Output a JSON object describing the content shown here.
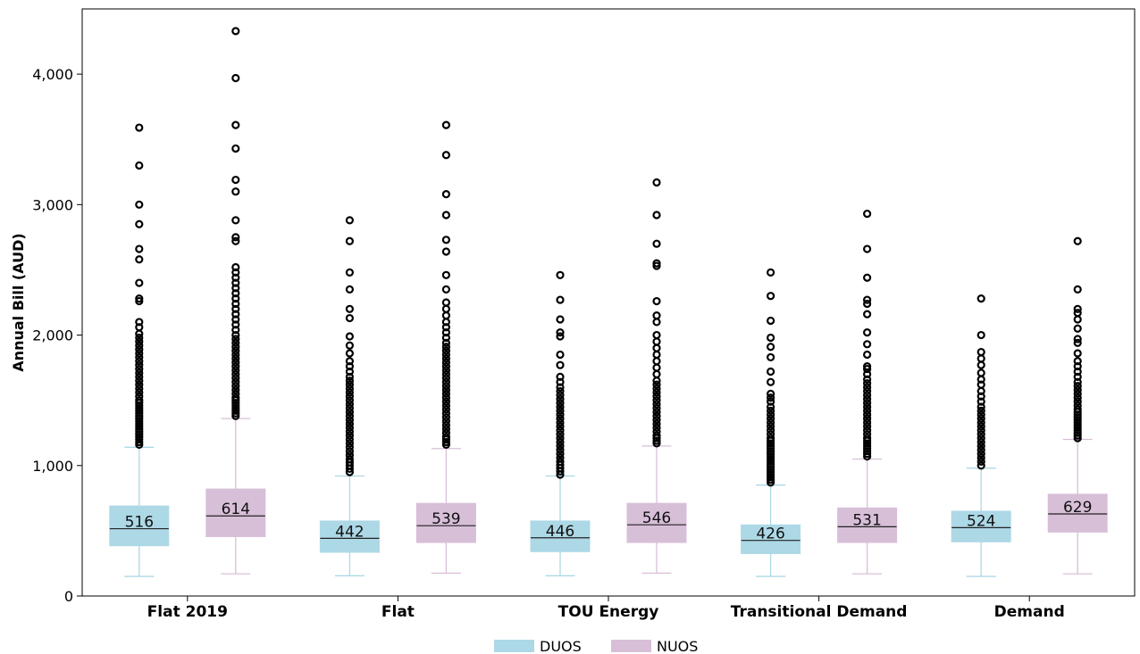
{
  "chart_data": {
    "type": "box",
    "ylabel": "Annual Bill (AUD)",
    "xlabel": "",
    "ylim": [
      0,
      4500
    ],
    "yticks": [
      0,
      1000,
      2000,
      3000,
      4000
    ],
    "ytick_labels": [
      "0",
      "1,000",
      "2,000",
      "3,000",
      "4,000"
    ],
    "grid": false,
    "legend_position": "bottom-center",
    "categories": [
      "Flat 2019",
      "Flat",
      "TOU Energy",
      "Transitional Demand",
      "Demand"
    ],
    "series": [
      {
        "name": "DUOS",
        "color": "#add8e6",
        "boxes": [
          {
            "q1": 385,
            "median": 516,
            "q3": 690,
            "whisker_low": 150,
            "whisker_high": 1140,
            "outliers": [
              1160,
              1180,
              1200,
              1220,
              1240,
              1260,
              1280,
              1300,
              1320,
              1340,
              1360,
              1380,
              1400,
              1420,
              1440,
              1460,
              1480,
              1500,
              1530,
              1560,
              1590,
              1620,
              1650,
              1680,
              1710,
              1740,
              1770,
              1800,
              1830,
              1860,
              1890,
              1920,
              1950,
              1980,
              2010,
              2060,
              2100,
              2260,
              2280,
              2400,
              2580,
              2660,
              2850,
              3000,
              3300,
              3590
            ]
          },
          {
            "q1": 335,
            "median": 442,
            "q3": 575,
            "whisker_low": 155,
            "whisker_high": 920,
            "outliers": [
              950,
              975,
              1000,
              1025,
              1050,
              1080,
              1110,
              1140,
              1170,
              1200,
              1230,
              1260,
              1290,
              1320,
              1350,
              1380,
              1410,
              1440,
              1470,
              1500,
              1530,
              1560,
              1590,
              1620,
              1650,
              1680,
              1720,
              1760,
              1800,
              1860,
              1920,
              1990,
              2130,
              2200,
              2350,
              2480,
              2720,
              2880
            ]
          },
          {
            "q1": 340,
            "median": 446,
            "q3": 575,
            "whisker_low": 155,
            "whisker_high": 920,
            "outliers": [
              930,
              955,
              980,
              1005,
              1030,
              1060,
              1090,
              1120,
              1150,
              1180,
              1210,
              1240,
              1270,
              1300,
              1330,
              1360,
              1390,
              1420,
              1450,
              1480,
              1510,
              1540,
              1570,
              1600,
              1640,
              1680,
              1770,
              1850,
              1990,
              2020,
              2120,
              2270,
              2460
            ]
          },
          {
            "q1": 325,
            "median": 426,
            "q3": 545,
            "whisker_low": 150,
            "whisker_high": 850,
            "outliers": [
              870,
              890,
              910,
              930,
              950,
              970,
              990,
              1010,
              1030,
              1050,
              1070,
              1090,
              1110,
              1130,
              1150,
              1170,
              1190,
              1210,
              1240,
              1270,
              1300,
              1330,
              1360,
              1390,
              1420,
              1450,
              1490,
              1520,
              1550,
              1640,
              1720,
              1830,
              1910,
              1980,
              2110,
              2300,
              2480
            ]
          },
          {
            "q1": 415,
            "median": 524,
            "q3": 650,
            "whisker_low": 150,
            "whisker_high": 980,
            "outliers": [
              1000,
              1030,
              1060,
              1090,
              1120,
              1150,
              1180,
              1210,
              1240,
              1270,
              1300,
              1330,
              1360,
              1390,
              1420,
              1450,
              1490,
              1530,
              1570,
              1620,
              1660,
              1710,
              1770,
              1820,
              1870,
              2000,
              2280
            ]
          }
        ]
      },
      {
        "name": "NUOS",
        "color": "#d8bfd8",
        "boxes": [
          {
            "q1": 455,
            "median": 614,
            "q3": 820,
            "whisker_low": 170,
            "whisker_high": 1360,
            "outliers": [
              1380,
              1400,
              1420,
              1440,
              1460,
              1480,
              1500,
              1520,
              1550,
              1580,
              1610,
              1640,
              1670,
              1700,
              1730,
              1760,
              1790,
              1820,
              1850,
              1880,
              1910,
              1940,
              1970,
              2000,
              2040,
              2080,
              2120,
              2160,
              2200,
              2240,
              2280,
              2320,
              2360,
              2400,
              2440,
              2480,
              2520,
              2720,
              2750,
              2880,
              3100,
              3190,
              3430,
              3610,
              3970,
              4330
            ]
          },
          {
            "q1": 410,
            "median": 539,
            "q3": 710,
            "whisker_low": 175,
            "whisker_high": 1130,
            "outliers": [
              1160,
              1180,
              1200,
              1220,
              1250,
              1280,
              1310,
              1340,
              1370,
              1400,
              1430,
              1460,
              1490,
              1520,
              1550,
              1580,
              1610,
              1640,
              1670,
              1700,
              1730,
              1760,
              1790,
              1820,
              1850,
              1880,
              1910,
              1940,
              1980,
              2020,
              2060,
              2100,
              2150,
              2200,
              2250,
              2350,
              2460,
              2640,
              2730,
              2920,
              3080,
              3380,
              3610
            ]
          },
          {
            "q1": 410,
            "median": 546,
            "q3": 710,
            "whisker_low": 175,
            "whisker_high": 1150,
            "outliers": [
              1170,
              1190,
              1210,
              1230,
              1260,
              1290,
              1320,
              1350,
              1380,
              1410,
              1440,
              1470,
              1500,
              1530,
              1560,
              1590,
              1620,
              1650,
              1700,
              1750,
              1800,
              1850,
              1900,
              1950,
              2000,
              2100,
              2150,
              2260,
              2530,
              2550,
              2700,
              2920,
              3170
            ]
          },
          {
            "q1": 410,
            "median": 531,
            "q3": 675,
            "whisker_low": 170,
            "whisker_high": 1050,
            "outliers": [
              1070,
              1090,
              1110,
              1130,
              1150,
              1170,
              1190,
              1210,
              1240,
              1270,
              1300,
              1330,
              1360,
              1390,
              1420,
              1450,
              1480,
              1510,
              1540,
              1570,
              1600,
              1630,
              1660,
              1700,
              1740,
              1760,
              1850,
              1930,
              2020,
              2160,
              2240,
              2270,
              2440,
              2660,
              2930
            ]
          },
          {
            "q1": 490,
            "median": 629,
            "q3": 780,
            "whisker_low": 170,
            "whisker_high": 1200,
            "outliers": [
              1210,
              1230,
              1250,
              1270,
              1290,
              1310,
              1330,
              1350,
              1370,
              1390,
              1410,
              1430,
              1460,
              1490,
              1520,
              1550,
              1580,
              1610,
              1640,
              1680,
              1720,
              1760,
              1800,
              1860,
              1940,
              1970,
              2050,
              2120,
              2170,
              2200,
              2350,
              2720
            ]
          }
        ]
      }
    ]
  }
}
